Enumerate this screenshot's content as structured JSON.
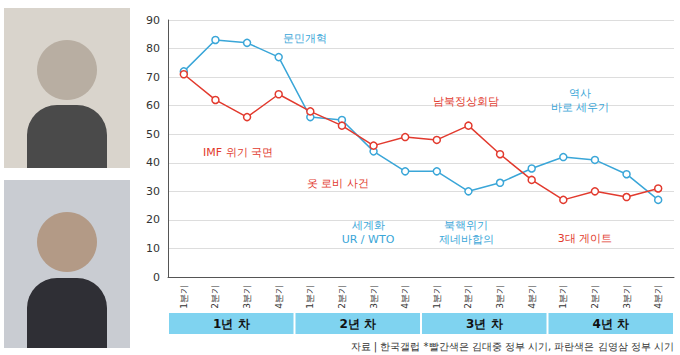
{
  "chart_data": {
    "type": "line",
    "categories": [
      "1분기",
      "2분기",
      "3분기",
      "4분기",
      "1분기",
      "2분기",
      "3분기",
      "4분기",
      "1분기",
      "2분기",
      "3분기",
      "4분기",
      "1분기",
      "2분기",
      "3분기",
      "4분기"
    ],
    "groups": [
      "1년 차",
      "2년 차",
      "3년 차",
      "4년 차"
    ],
    "series": [
      {
        "color": "#3aa6d8",
        "marker": "circle",
        "values": [
          72,
          83,
          82,
          77,
          56,
          55,
          44,
          37,
          37,
          30,
          33,
          38,
          42,
          41,
          36,
          27
        ]
      },
      {
        "color": "#e23a2e",
        "marker": "circle",
        "values": [
          71,
          62,
          56,
          64,
          58,
          53,
          46,
          49,
          48,
          53,
          43,
          34,
          27,
          30,
          28,
          31
        ]
      }
    ],
    "annotations": [
      {
        "text": "문민개혁",
        "color": "#3aa6d8"
      },
      {
        "text": "IMF 위기 국면",
        "color": "#e23a2e"
      },
      {
        "text": "옷 로비 사건",
        "color": "#e23a2e"
      },
      {
        "text": "세계화\nUR / WTO",
        "color": "#3aa6d8"
      },
      {
        "text": "남북정상회담",
        "color": "#e23a2e"
      },
      {
        "text": "북핵위기\n제네바합의",
        "color": "#3aa6d8"
      },
      {
        "text": "역사\n바로 세우기",
        "color": "#3aa6d8"
      },
      {
        "text": "3대 게이트",
        "color": "#e23a2e"
      }
    ],
    "source": "자료 | 한국갤럽 *빨간색은 김대중 정부 시기, 파란색은 김영삼 정부 시기",
    "ylim": [
      0,
      90
    ],
    "yticks": [
      0,
      10,
      20,
      30,
      40,
      50,
      60,
      70,
      80,
      90
    ],
    "grid": true
  }
}
